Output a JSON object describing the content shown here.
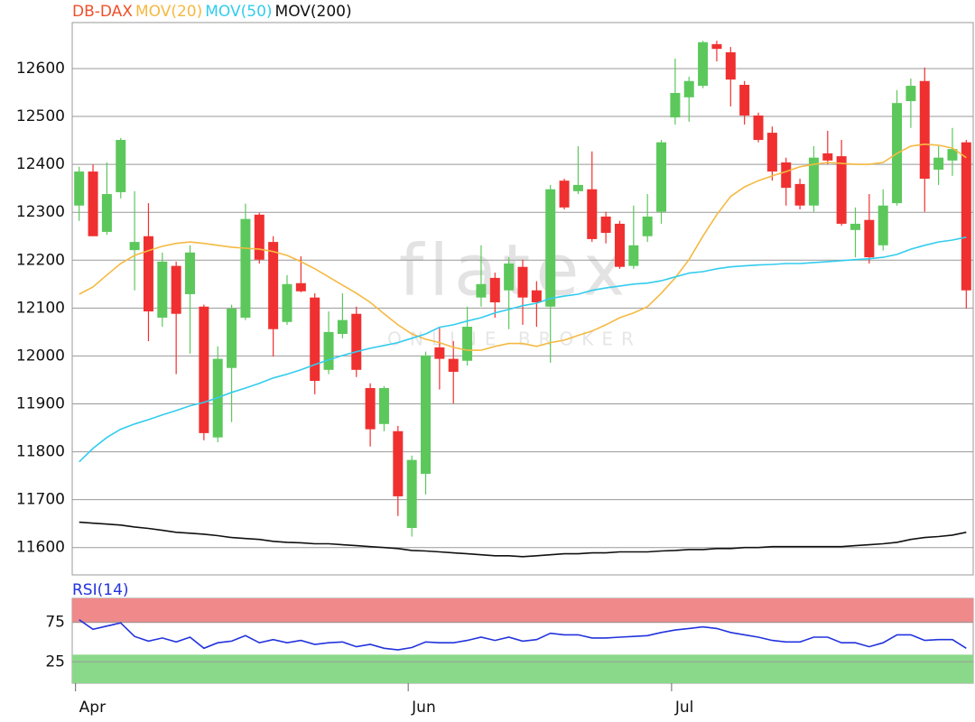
{
  "chart_data": [
    {
      "type": "candlestick",
      "categories": [
        "Apr",
        null,
        null,
        null,
        null,
        null,
        null,
        null,
        null,
        null,
        null,
        null,
        null,
        null,
        null,
        null,
        null,
        null,
        null,
        null,
        null,
        null,
        null,
        null,
        "Jun",
        null,
        null,
        null,
        null,
        null,
        null,
        null,
        null,
        null,
        null,
        null,
        null,
        null,
        null,
        null,
        null,
        null,
        null,
        "Jul",
        null,
        null,
        null,
        null,
        null,
        null,
        null,
        null,
        null,
        null,
        null,
        null,
        null,
        null,
        null,
        null,
        null,
        null,
        null,
        null,
        null
      ],
      "ylim": [
        11543,
        12696
      ],
      "yticks": [
        11600,
        11700,
        11800,
        11900,
        12000,
        12100,
        12200,
        12300,
        12400,
        12500,
        12600
      ],
      "grid": true,
      "watermark": {
        "logo": "flatex",
        "tagline": "ONLINE BROKER"
      },
      "series": [
        {
          "name": "DB-DAX",
          "color": "#f0502a",
          "up_color": "#5cc85c",
          "down_color": "#f03030",
          "open": [
            12314,
            12385,
            12259,
            12342,
            12221,
            12250,
            12080,
            12188,
            12129,
            12103,
            11830,
            11975,
            12080,
            12295,
            12238,
            12071,
            12152,
            12122,
            11971,
            12046,
            12088,
            11933,
            11858,
            11843,
            11641,
            11754,
            12018,
            11994,
            11990,
            12122,
            12163,
            12137,
            12186,
            12137,
            12103,
            12366,
            12344,
            12348,
            12291,
            12276,
            12188,
            12250,
            12301,
            12498,
            12540,
            12564,
            12651,
            12634,
            12566,
            12502,
            12466,
            12404,
            12359,
            12314,
            12423,
            12417,
            12263,
            12284,
            12231,
            12319,
            12532,
            12574,
            12389,
            12408,
            12446
          ],
          "high": [
            12395,
            12400,
            12404,
            12455,
            12344,
            12319,
            12216,
            12197,
            12231,
            12107,
            12020,
            12107,
            12318,
            12299,
            12250,
            12169,
            12208,
            12131,
            12093,
            12131,
            12103,
            11943,
            11937,
            11854,
            11792,
            12009,
            12061,
            12031,
            12103,
            12231,
            12174,
            12206,
            12201,
            12156,
            12357,
            12370,
            12438,
            12427,
            12301,
            12282,
            12314,
            12338,
            12451,
            12621,
            12583,
            12658,
            12658,
            12645,
            12574,
            12508,
            12479,
            12414,
            12370,
            12438,
            12470,
            12451,
            12310,
            12338,
            12348,
            12555,
            12579,
            12602,
            12438,
            12476,
            12451
          ],
          "low": [
            12282,
            12250,
            12253,
            12329,
            12137,
            12031,
            12061,
            11962,
            12005,
            11824,
            11820,
            11862,
            12075,
            12193,
            11999,
            12065,
            12133,
            11920,
            11962,
            12037,
            11956,
            11811,
            11843,
            11666,
            11623,
            11711,
            11930,
            11901,
            11980,
            12103,
            12080,
            12056,
            12065,
            12061,
            11986,
            12306,
            12338,
            12238,
            12235,
            12182,
            12182,
            12238,
            12276,
            12483,
            12489,
            12559,
            12615,
            12521,
            12483,
            12446,
            12366,
            12314,
            12306,
            12301,
            12400,
            12272,
            12206,
            12193,
            12220,
            12314,
            12476,
            12301,
            12357,
            12376,
            12099
          ],
          "close": [
            12385,
            12250,
            12338,
            12451,
            12238,
            12093,
            12197,
            12088,
            12216,
            11839,
            11994,
            12099,
            12286,
            12201,
            12056,
            12150,
            12135,
            11948,
            12050,
            12075,
            11971,
            11847,
            11933,
            11707,
            11783,
            12001,
            11994,
            11967,
            12061,
            12150,
            12112,
            12193,
            12122,
            12112,
            12348,
            12310,
            12357,
            12244,
            12257,
            12186,
            12231,
            12291,
            12446,
            12549,
            12574,
            12655,
            12641,
            12577,
            12502,
            12451,
            12385,
            12351,
            12314,
            12414,
            12408,
            12276,
            12276,
            12206,
            12314,
            12528,
            12564,
            12370,
            12414,
            12432,
            12137
          ]
        },
        {
          "name": "MOV(20)",
          "color": "#f5b942",
          "values": [
            12129,
            12144,
            12169,
            12193,
            12210,
            12220,
            12229,
            12235,
            12238,
            12235,
            12231,
            12227,
            12225,
            12223,
            12218,
            12210,
            12197,
            12182,
            12165,
            12148,
            12131,
            12112,
            12088,
            12065,
            12046,
            12035,
            12028,
            12018,
            12012,
            12012,
            12020,
            12026,
            12026,
            12020,
            12028,
            12033,
            12043,
            12052,
            12065,
            12080,
            12090,
            12103,
            12131,
            12163,
            12201,
            12250,
            12295,
            12333,
            12353,
            12366,
            12376,
            12385,
            12395,
            12400,
            12404,
            12402,
            12400,
            12400,
            12404,
            12423,
            12438,
            12442,
            12440,
            12434,
            12414
          ]
        },
        {
          "name": "MOV(50)",
          "color": "#33ccee",
          "values": [
            11779,
            11807,
            11830,
            11847,
            11858,
            11867,
            11877,
            11886,
            11896,
            11903,
            11913,
            11924,
            11933,
            11943,
            11954,
            11962,
            11971,
            11982,
            11992,
            12001,
            12009,
            12016,
            12022,
            12028,
            12037,
            12046,
            12060,
            12065,
            12073,
            12080,
            12090,
            12097,
            12105,
            12110,
            12120,
            12125,
            12129,
            12137,
            12142,
            12146,
            12150,
            12152,
            12157,
            12165,
            12173,
            12176,
            12182,
            12186,
            12188,
            12190,
            12191,
            12193,
            12193,
            12195,
            12197,
            12199,
            12201,
            12203,
            12206,
            12212,
            12223,
            12231,
            12238,
            12242,
            12248
          ]
        },
        {
          "name": "MOV(200)",
          "color": "#111111",
          "values": [
            11653,
            11651,
            11649,
            11647,
            11643,
            11640,
            11636,
            11632,
            11630,
            11628,
            11625,
            11621,
            11619,
            11617,
            11613,
            11611,
            11610,
            11608,
            11608,
            11606,
            11604,
            11602,
            11600,
            11598,
            11594,
            11593,
            11591,
            11589,
            11587,
            11585,
            11583,
            11583,
            11581,
            11583,
            11585,
            11587,
            11587,
            11589,
            11589,
            11591,
            11591,
            11591,
            11593,
            11594,
            11596,
            11596,
            11598,
            11598,
            11600,
            11600,
            11602,
            11602,
            11602,
            11602,
            11602,
            11602,
            11604,
            11606,
            11608,
            11611,
            11617,
            11621,
            11623,
            11626,
            11632
          ]
        }
      ]
    },
    {
      "type": "line",
      "ylim": [
        -2,
        105
      ],
      "yticks": [
        25,
        75
      ],
      "bands": [
        {
          "from": 74,
          "to": 105,
          "color": "#f08a8a"
        },
        {
          "from": -2,
          "to": 34,
          "color": "#8ad88a"
        }
      ],
      "series": [
        {
          "name": "RSI(14)",
          "color": "#2233dd",
          "values": [
            78,
            66,
            70,
            74,
            57,
            51,
            55,
            50,
            56,
            42,
            49,
            51,
            58,
            49,
            53,
            49,
            52,
            47,
            49,
            50,
            44,
            47,
            42,
            40,
            43,
            50,
            49,
            49,
            52,
            56,
            52,
            56,
            51,
            53,
            61,
            59,
            59,
            55,
            55,
            56,
            57,
            58,
            62,
            65,
            67,
            69,
            67,
            62,
            59,
            56,
            52,
            50,
            50,
            56,
            56,
            49,
            49,
            44,
            49,
            59,
            59,
            52,
            53,
            53,
            42
          ]
        }
      ]
    }
  ]
}
